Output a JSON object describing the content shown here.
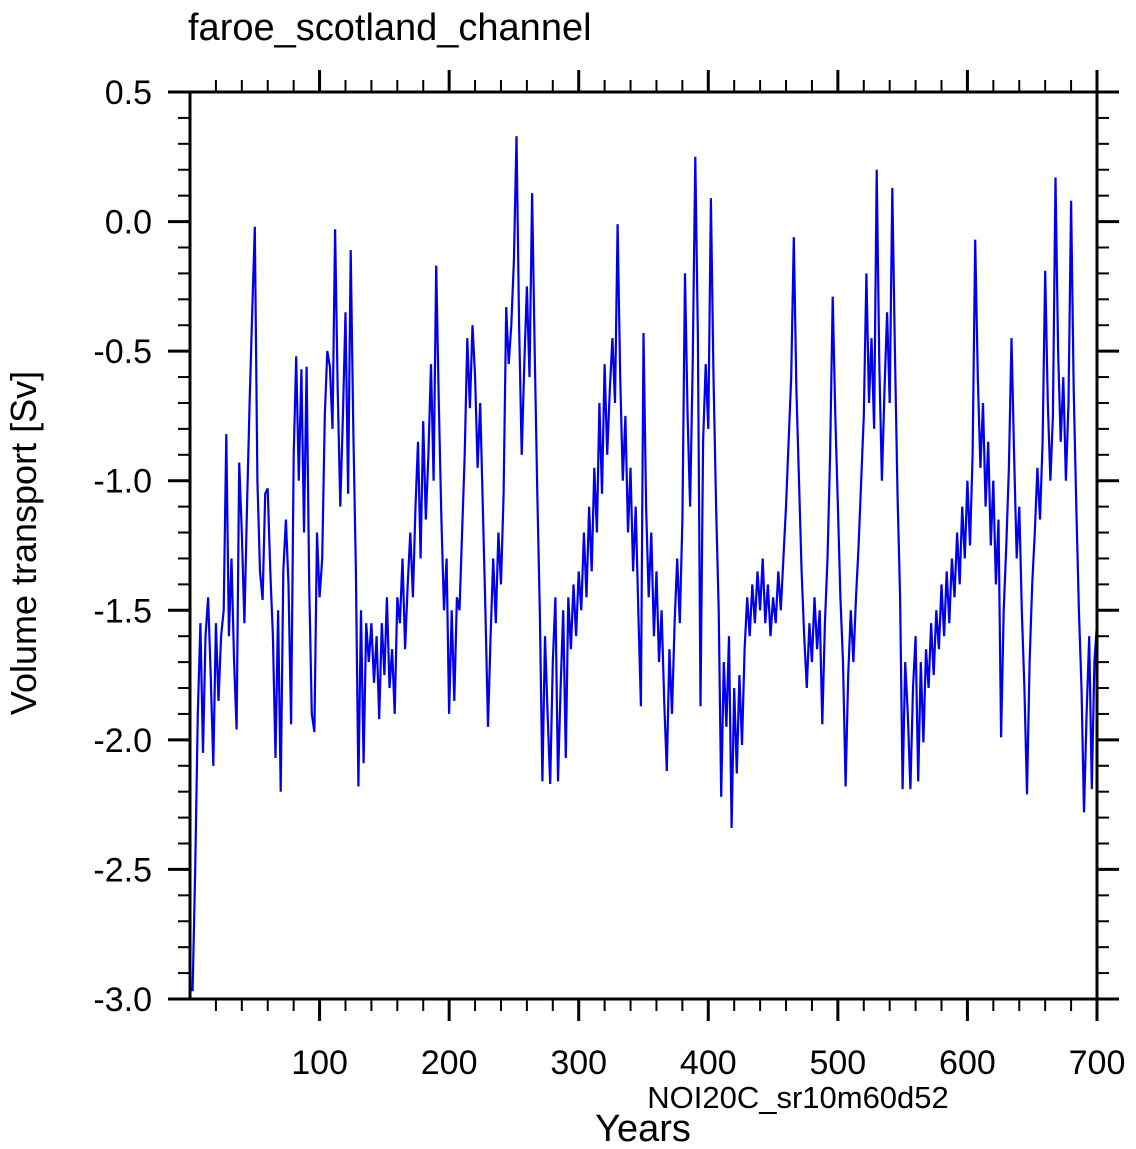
{
  "page": {
    "background": "#ffffff"
  },
  "chart": {
    "title": "faroe_scotland_channel",
    "xlabel": "Years",
    "ylabel": "Volume transport [Sv]",
    "annotation": {
      "text": "NOI20C_sr10m60d52",
      "color": "#0000ee"
    },
    "line_color": "#0000ee",
    "axis_color": "#000000"
  },
  "chart_data": {
    "type": "line",
    "title": "faroe_scotland_channel",
    "xlabel": "Years",
    "ylabel": "Volume transport [Sv]",
    "series_label": "NOI20C_sr10m60d52",
    "grid": false,
    "legend": "none",
    "xlim": [
      0,
      700
    ],
    "ylim": [
      -3.0,
      0.5
    ],
    "x_major_ticks": [
      100,
      200,
      300,
      400,
      500,
      600,
      700
    ],
    "x_tick_labels": [
      "100",
      "200",
      "300",
      "400",
      "500",
      "600",
      "700"
    ],
    "x_minor_tick_step": 20,
    "y_major_ticks": [
      0.5,
      0.0,
      -0.5,
      -1.0,
      -1.5,
      -2.0,
      -2.5,
      -3.0
    ],
    "y_tick_labels": [
      "0.5",
      "0.0",
      "-0.5",
      "-1.0",
      "-1.5",
      "-2.0",
      "-2.5",
      "-3.0"
    ],
    "y_minor_tick_step": 0.1,
    "x_start": 2,
    "x_step": 2,
    "values": [
      -2.97,
      -2.5,
      -1.9,
      -1.55,
      -2.05,
      -1.6,
      -1.45,
      -1.75,
      -2.1,
      -1.55,
      -1.85,
      -1.6,
      -1.5,
      -0.82,
      -1.6,
      -1.3,
      -1.7,
      -1.96,
      -0.93,
      -1.2,
      -1.55,
      -1.1,
      -0.7,
      -0.35,
      -0.02,
      -1.0,
      -1.35,
      -1.46,
      -1.05,
      -1.03,
      -1.35,
      -1.6,
      -2.07,
      -1.5,
      -2.2,
      -1.35,
      -1.15,
      -1.4,
      -1.94,
      -0.9,
      -0.52,
      -1.0,
      -0.57,
      -1.2,
      -0.56,
      -1.4,
      -1.9,
      -1.97,
      -1.2,
      -1.45,
      -1.3,
      -0.75,
      -0.5,
      -0.56,
      -0.8,
      -0.03,
      -0.65,
      -1.1,
      -0.75,
      -0.35,
      -1.05,
      -0.11,
      -0.8,
      -1.35,
      -2.18,
      -1.5,
      -2.09,
      -1.55,
      -1.7,
      -1.55,
      -1.78,
      -1.6,
      -1.92,
      -1.55,
      -1.75,
      -1.45,
      -1.8,
      -1.65,
      -1.9,
      -1.45,
      -1.55,
      -1.3,
      -1.65,
      -1.4,
      -1.2,
      -1.45,
      -1.1,
      -0.85,
      -1.3,
      -0.77,
      -1.15,
      -0.9,
      -0.55,
      -1.0,
      -0.17,
      -0.7,
      -1.15,
      -1.5,
      -1.3,
      -1.9,
      -1.5,
      -1.85,
      -1.45,
      -1.5,
      -1.2,
      -0.9,
      -0.45,
      -0.72,
      -0.4,
      -0.6,
      -0.95,
      -0.7,
      -1.1,
      -1.5,
      -1.95,
      -1.6,
      -1.3,
      -1.55,
      -1.2,
      -1.4,
      -1.05,
      -0.33,
      -0.55,
      -0.4,
      -0.15,
      0.33,
      -0.4,
      -0.9,
      -0.55,
      -0.25,
      -0.6,
      0.11,
      -0.5,
      -1.05,
      -1.5,
      -2.16,
      -1.6,
      -1.9,
      -2.17,
      -1.7,
      -1.45,
      -2.16,
      -1.8,
      -1.5,
      -2.07,
      -1.45,
      -1.65,
      -1.4,
      -1.6,
      -1.35,
      -1.5,
      -1.2,
      -1.45,
      -1.1,
      -1.35,
      -0.95,
      -1.2,
      -0.7,
      -1.05,
      -0.55,
      -0.9,
      -0.65,
      -0.45,
      -0.7,
      -0.01,
      -0.6,
      -1.0,
      -0.75,
      -1.2,
      -0.95,
      -1.35,
      -1.1,
      -1.5,
      -1.87,
      -0.43,
      -1.1,
      -1.45,
      -1.2,
      -1.6,
      -1.35,
      -1.7,
      -1.5,
      -1.85,
      -2.12,
      -1.65,
      -1.9,
      -1.55,
      -1.3,
      -1.55,
      -1.15,
      -0.2,
      -0.75,
      -1.1,
      -0.55,
      0.25,
      -0.45,
      -1.87,
      -0.85,
      -0.55,
      -0.8,
      0.09,
      -0.6,
      -1.1,
      -1.5,
      -2.22,
      -1.7,
      -1.95,
      -1.6,
      -2.34,
      -1.8,
      -2.13,
      -1.75,
      -2.02,
      -1.65,
      -1.45,
      -1.6,
      -1.4,
      -1.55,
      -1.35,
      -1.5,
      -1.3,
      -1.55,
      -1.4,
      -1.6,
      -1.45,
      -1.55,
      -1.35,
      -1.5,
      -1.3,
      -1.1,
      -0.85,
      -0.6,
      -0.06,
      -0.65,
      -1.0,
      -1.35,
      -1.6,
      -1.8,
      -1.55,
      -1.7,
      -1.45,
      -1.65,
      -1.5,
      -1.94,
      -1.55,
      -1.3,
      -0.9,
      -0.29,
      -0.75,
      -1.1,
      -1.45,
      -1.7,
      -2.18,
      -1.75,
      -1.5,
      -1.7,
      -1.45,
      -1.25,
      -1.0,
      -0.75,
      -0.2,
      -0.7,
      -0.45,
      -0.8,
      0.2,
      -0.55,
      -1.0,
      -0.65,
      -0.35,
      -0.7,
      0.13,
      -0.5,
      -1.05,
      -1.45,
      -2.19,
      -1.7,
      -1.9,
      -2.19,
      -1.8,
      -1.6,
      -2.16,
      -1.7,
      -2.01,
      -1.65,
      -1.8,
      -1.55,
      -1.75,
      -1.5,
      -1.65,
      -1.4,
      -1.6,
      -1.35,
      -1.55,
      -1.3,
      -1.45,
      -1.2,
      -1.4,
      -1.1,
      -1.3,
      -1.0,
      -1.25,
      -0.9,
      -0.07,
      -0.6,
      -0.95,
      -0.7,
      -1.1,
      -0.85,
      -1.25,
      -1.0,
      -1.4,
      -1.15,
      -1.99,
      -1.5,
      -1.25,
      -0.95,
      -0.45,
      -0.9,
      -1.3,
      -1.1,
      -1.5,
      -1.8,
      -2.21,
      -1.7,
      -1.4,
      -1.2,
      -0.95,
      -1.15,
      -0.85,
      -0.19,
      -0.7,
      -1.0,
      -0.75,
      0.17,
      -0.5,
      -0.85,
      -0.6,
      -1.0,
      -0.7,
      0.08,
      -0.65,
      -1.1,
      -1.5,
      -1.8,
      -2.28,
      -1.9,
      -1.6,
      -2.19,
      -1.7,
      -1.55
    ]
  }
}
